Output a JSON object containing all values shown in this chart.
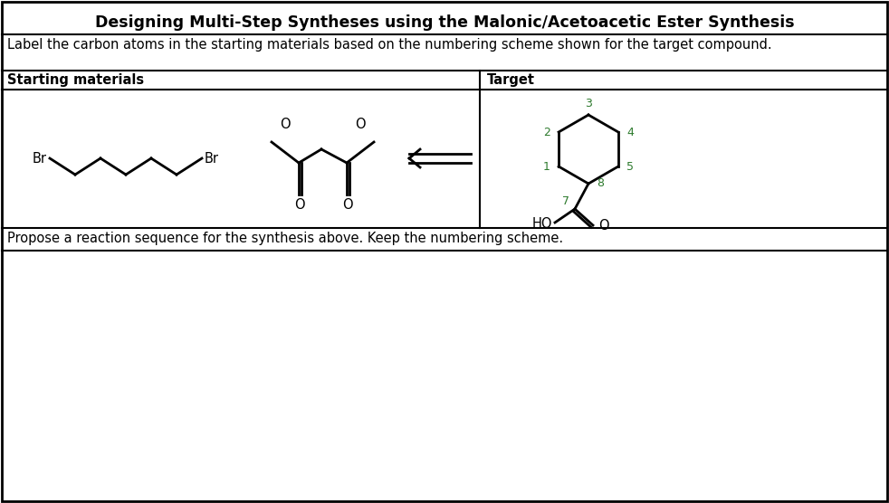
{
  "title": "Designing Multi-Step Syntheses using the Malonic/Acetoacetic Ester Synthesis",
  "instruction": "Label the carbon atoms in the starting materials based on the numbering scheme shown for the target compound.",
  "starting_materials_label": "Starting materials",
  "target_label": "Target",
  "propose_text": "Propose a reaction sequence for the synthesis above. Keep the numbering scheme.",
  "bg_color": "#ffffff",
  "border_color": "#000000",
  "text_color": "#000000",
  "green_color": "#2d7a2d",
  "title_fontsize": 12.5,
  "body_fontsize": 10.5,
  "small_fontsize": 9
}
